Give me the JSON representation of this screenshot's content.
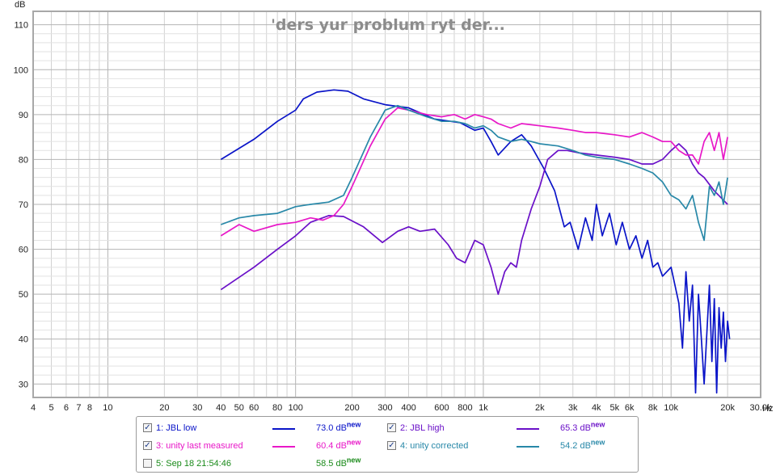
{
  "chart_data": {
    "type": "line",
    "title": "'ders yur problum ryt der...",
    "ylabel": "dB",
    "xunit": "Hz",
    "xscale": "log",
    "xlim": [
      4,
      30000
    ],
    "ylim": [
      27,
      113
    ],
    "grid": true,
    "legend_position": "bottom",
    "x_ticks": [
      {
        "v": 4,
        "label": "4"
      },
      {
        "v": 5,
        "label": "5"
      },
      {
        "v": 6,
        "label": "6"
      },
      {
        "v": 7,
        "label": "7"
      },
      {
        "v": 8,
        "label": "8"
      },
      {
        "v": 10,
        "label": "10"
      },
      {
        "v": 20,
        "label": "20"
      },
      {
        "v": 30,
        "label": "30"
      },
      {
        "v": 40,
        "label": "40"
      },
      {
        "v": 50,
        "label": "50"
      },
      {
        "v": 60,
        "label": "60"
      },
      {
        "v": 80,
        "label": "80"
      },
      {
        "v": 100,
        "label": "100"
      },
      {
        "v": 200,
        "label": "200"
      },
      {
        "v": 300,
        "label": "300"
      },
      {
        "v": 400,
        "label": "400"
      },
      {
        "v": 600,
        "label": "600"
      },
      {
        "v": 800,
        "label": "800"
      },
      {
        "v": 1000,
        "label": "1k"
      },
      {
        "v": 2000,
        "label": "2k"
      },
      {
        "v": 3000,
        "label": "3k"
      },
      {
        "v": 4000,
        "label": "4k"
      },
      {
        "v": 5000,
        "label": "5k"
      },
      {
        "v": 6000,
        "label": "6k"
      },
      {
        "v": 8000,
        "label": "8k"
      },
      {
        "v": 10000,
        "label": "10k"
      },
      {
        "v": 20000,
        "label": "20k"
      },
      {
        "v": 30000,
        "label": "30.0k"
      }
    ],
    "y_ticks": [
      30,
      40,
      50,
      60,
      70,
      80,
      90,
      100,
      110
    ],
    "series": [
      {
        "name": "1: JBL low",
        "color": "#0a14c8",
        "checked": true,
        "value": "73.0 dB",
        "points": [
          [
            40,
            80
          ],
          [
            60,
            84.5
          ],
          [
            80,
            88.5
          ],
          [
            100,
            91
          ],
          [
            110,
            93.5
          ],
          [
            130,
            95
          ],
          [
            160,
            95.5
          ],
          [
            190,
            95.2
          ],
          [
            230,
            93.5
          ],
          [
            300,
            92.2
          ],
          [
            400,
            91.5
          ],
          [
            550,
            89
          ],
          [
            750,
            88.2
          ],
          [
            900,
            86.5
          ],
          [
            1000,
            87
          ],
          [
            1100,
            84
          ],
          [
            1200,
            81
          ],
          [
            1400,
            84
          ],
          [
            1600,
            85.5
          ],
          [
            1800,
            83
          ],
          [
            2100,
            78
          ],
          [
            2400,
            73
          ],
          [
            2700,
            65
          ],
          [
            2900,
            66
          ],
          [
            3200,
            60
          ],
          [
            3500,
            67
          ],
          [
            3800,
            62
          ],
          [
            4000,
            70
          ],
          [
            4300,
            63
          ],
          [
            4700,
            68
          ],
          [
            5100,
            61
          ],
          [
            5500,
            66
          ],
          [
            6000,
            60
          ],
          [
            6500,
            63
          ],
          [
            7000,
            58
          ],
          [
            7500,
            62
          ],
          [
            8000,
            56
          ],
          [
            8500,
            57
          ],
          [
            9000,
            54
          ],
          [
            10000,
            56
          ],
          [
            11000,
            48
          ],
          [
            11500,
            38
          ],
          [
            12000,
            55
          ],
          [
            12500,
            44
          ],
          [
            13000,
            52
          ],
          [
            13500,
            28
          ],
          [
            14000,
            50
          ],
          [
            14500,
            40
          ],
          [
            15000,
            30
          ],
          [
            16000,
            52
          ],
          [
            16500,
            35
          ],
          [
            17000,
            49
          ],
          [
            17500,
            28
          ],
          [
            18000,
            47
          ],
          [
            18500,
            38
          ],
          [
            19000,
            46
          ],
          [
            19500,
            35
          ],
          [
            20000,
            44
          ],
          [
            20500,
            40
          ]
        ]
      },
      {
        "name": "2: JBL high",
        "color": "#6a10c8",
        "checked": true,
        "value": "65.3 dB",
        "points": [
          [
            40,
            51
          ],
          [
            60,
            56
          ],
          [
            80,
            60
          ],
          [
            100,
            63
          ],
          [
            120,
            66
          ],
          [
            150,
            67.5
          ],
          [
            180,
            67.3
          ],
          [
            230,
            65
          ],
          [
            290,
            61.5
          ],
          [
            350,
            64
          ],
          [
            400,
            65
          ],
          [
            460,
            64
          ],
          [
            550,
            64.5
          ],
          [
            650,
            61
          ],
          [
            720,
            58
          ],
          [
            800,
            57
          ],
          [
            900,
            62
          ],
          [
            1000,
            61
          ],
          [
            1100,
            56
          ],
          [
            1200,
            50
          ],
          [
            1300,
            55
          ],
          [
            1400,
            57
          ],
          [
            1500,
            56
          ],
          [
            1600,
            62
          ],
          [
            1800,
            69
          ],
          [
            2000,
            74
          ],
          [
            2200,
            80
          ],
          [
            2500,
            82
          ],
          [
            2800,
            82
          ],
          [
            3200,
            81.5
          ],
          [
            4000,
            81
          ],
          [
            5000,
            80.5
          ],
          [
            6000,
            80
          ],
          [
            7000,
            79
          ],
          [
            8000,
            79
          ],
          [
            9000,
            80
          ],
          [
            10000,
            82
          ],
          [
            11000,
            83.5
          ],
          [
            12000,
            82
          ],
          [
            13000,
            79
          ],
          [
            14000,
            77
          ],
          [
            15000,
            76
          ],
          [
            17000,
            73
          ],
          [
            20000,
            70
          ]
        ]
      },
      {
        "name": "3: unity last measured",
        "color": "#e818c8",
        "checked": true,
        "value": "60.4 dB",
        "points": [
          [
            40,
            63
          ],
          [
            50,
            65.5
          ],
          [
            60,
            64
          ],
          [
            80,
            65.5
          ],
          [
            100,
            66
          ],
          [
            120,
            67
          ],
          [
            140,
            66.5
          ],
          [
            160,
            67.5
          ],
          [
            180,
            70
          ],
          [
            200,
            74
          ],
          [
            250,
            83
          ],
          [
            300,
            89
          ],
          [
            350,
            91.5
          ],
          [
            400,
            91
          ],
          [
            500,
            90
          ],
          [
            600,
            89.5
          ],
          [
            700,
            90
          ],
          [
            800,
            89
          ],
          [
            900,
            90
          ],
          [
            1000,
            89.5
          ],
          [
            1100,
            89
          ],
          [
            1200,
            88
          ],
          [
            1400,
            87
          ],
          [
            1600,
            88
          ],
          [
            2000,
            87.5
          ],
          [
            2500,
            87
          ],
          [
            3000,
            86.5
          ],
          [
            3500,
            86
          ],
          [
            4000,
            86
          ],
          [
            5000,
            85.5
          ],
          [
            6000,
            85
          ],
          [
            7000,
            86
          ],
          [
            8000,
            85
          ],
          [
            9000,
            84
          ],
          [
            10000,
            84
          ],
          [
            11000,
            82
          ],
          [
            12000,
            81
          ],
          [
            13000,
            81
          ],
          [
            14000,
            79
          ],
          [
            15000,
            84
          ],
          [
            16000,
            86
          ],
          [
            17000,
            82
          ],
          [
            18000,
            86
          ],
          [
            19000,
            80
          ],
          [
            20000,
            85
          ]
        ]
      },
      {
        "name": "4: unity corrected",
        "color": "#2888a8",
        "checked": true,
        "value": "54.2 dB",
        "points": [
          [
            40,
            65.5
          ],
          [
            50,
            67
          ],
          [
            60,
            67.5
          ],
          [
            80,
            68
          ],
          [
            100,
            69.5
          ],
          [
            120,
            70
          ],
          [
            150,
            70.5
          ],
          [
            180,
            72
          ],
          [
            200,
            76
          ],
          [
            250,
            85
          ],
          [
            300,
            91
          ],
          [
            350,
            92
          ],
          [
            400,
            91
          ],
          [
            500,
            89.5
          ],
          [
            600,
            88.5
          ],
          [
            700,
            88.5
          ],
          [
            800,
            88
          ],
          [
            900,
            87
          ],
          [
            1000,
            87.5
          ],
          [
            1100,
            86.5
          ],
          [
            1200,
            85
          ],
          [
            1400,
            84
          ],
          [
            1600,
            84.5
          ],
          [
            1800,
            84
          ],
          [
            2000,
            83.5
          ],
          [
            2500,
            83
          ],
          [
            3000,
            82
          ],
          [
            3500,
            81
          ],
          [
            4000,
            80.5
          ],
          [
            5000,
            80
          ],
          [
            6000,
            79
          ],
          [
            7000,
            78
          ],
          [
            8000,
            77
          ],
          [
            9000,
            75
          ],
          [
            10000,
            72
          ],
          [
            11000,
            71
          ],
          [
            12000,
            69
          ],
          [
            13000,
            72
          ],
          [
            14000,
            66
          ],
          [
            15000,
            62
          ],
          [
            16000,
            74
          ],
          [
            17000,
            72
          ],
          [
            18000,
            75
          ],
          [
            19000,
            70
          ],
          [
            20000,
            76
          ]
        ]
      },
      {
        "name": "5: Sep 18 21:54:46",
        "color": "#1a8a1a",
        "checked": false,
        "value": "58.5 dB",
        "points": []
      }
    ]
  },
  "legend": {
    "new_badge": "new"
  }
}
